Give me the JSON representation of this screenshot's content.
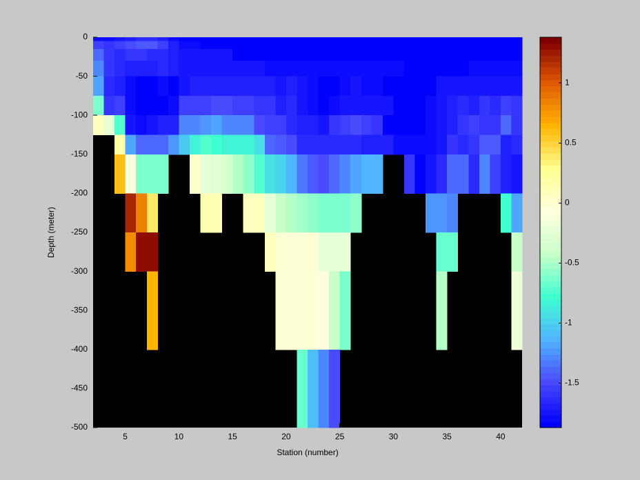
{
  "chart_data": {
    "type": "heatmap",
    "xlabel": "Station (number)",
    "ylabel": "Depth (meter)",
    "x_edges": [
      2,
      3,
      4,
      5,
      6,
      7,
      8,
      9,
      10,
      11,
      12,
      13,
      14,
      15,
      16,
      17,
      18,
      19,
      20,
      21,
      22,
      23,
      24,
      25,
      26,
      27,
      28,
      29,
      30,
      31,
      32,
      33,
      34,
      35,
      36,
      37,
      38,
      39,
      40,
      41,
      42
    ],
    "y_edges": [
      0,
      -5,
      -15,
      -30,
      -50,
      -75,
      -100,
      -125,
      -150,
      -200,
      -250,
      -300,
      -400,
      -500
    ],
    "values": [
      [
        -1.8,
        -1.8,
        -1.75,
        -1.7,
        -1.65,
        -1.65,
        -1.7,
        -1.8,
        -1.85,
        -1.85,
        -1.85,
        -1.85,
        -1.85,
        -1.85,
        -1.85,
        -1.85,
        -1.85,
        -1.85,
        -1.85,
        -1.85,
        -1.85,
        -1.85,
        -1.85,
        -1.85,
        -1.85,
        -1.85,
        -1.85,
        -1.85,
        -1.85,
        -1.85,
        -1.85,
        -1.85,
        -1.85,
        -1.85,
        -1.85,
        -1.85,
        -1.85,
        -1.85,
        -1.85,
        -1.85
      ],
      [
        -1.55,
        -1.6,
        -1.55,
        -1.5,
        -1.45,
        -1.45,
        -1.55,
        -1.7,
        -1.8,
        -1.8,
        -1.85,
        -1.85,
        -1.85,
        -1.85,
        -1.85,
        -1.85,
        -1.85,
        -1.85,
        -1.85,
        -1.85,
        -1.85,
        -1.85,
        -1.85,
        -1.85,
        -1.85,
        -1.85,
        -1.85,
        -1.85,
        -1.85,
        -1.85,
        -1.85,
        -1.85,
        -1.85,
        -1.85,
        -1.85,
        -1.85,
        -1.85,
        -1.85,
        -1.85,
        -1.85
      ],
      [
        -1.4,
        -1.6,
        -1.65,
        -1.6,
        -1.6,
        -1.65,
        -1.65,
        -1.7,
        -1.75,
        -1.75,
        -1.75,
        -1.75,
        -1.75,
        -1.82,
        -1.82,
        -1.82,
        -1.82,
        -1.82,
        -1.82,
        -1.82,
        -1.82,
        -1.85,
        -1.85,
        -1.85,
        -1.85,
        -1.85,
        -1.85,
        -1.85,
        -1.85,
        -1.85,
        -1.85,
        -1.85,
        -1.85,
        -1.85,
        -1.85,
        -1.85,
        -1.85,
        -1.85,
        -1.85,
        -1.85
      ],
      [
        -1.3,
        -1.6,
        -1.65,
        -1.7,
        -1.7,
        -1.7,
        -1.65,
        -1.7,
        -1.75,
        -1.75,
        -1.75,
        -1.75,
        -1.75,
        -1.75,
        -1.75,
        -1.75,
        -1.8,
        -1.8,
        -1.8,
        -1.8,
        -1.8,
        -1.8,
        -1.8,
        -1.8,
        -1.8,
        -1.8,
        -1.8,
        -1.8,
        -1.8,
        -1.85,
        -1.85,
        -1.85,
        -1.85,
        -1.85,
        -1.85,
        -1.8,
        -1.8,
        -1.8,
        -1.8,
        -1.8
      ],
      [
        -1.2,
        -1.65,
        -1.7,
        -1.8,
        -1.85,
        -1.85,
        -1.8,
        -1.85,
        -1.75,
        -1.7,
        -1.7,
        -1.7,
        -1.7,
        -1.7,
        -1.7,
        -1.7,
        -1.7,
        -1.75,
        -1.7,
        -1.75,
        -1.8,
        -1.85,
        -1.85,
        -1.8,
        -1.75,
        -1.8,
        -1.8,
        -1.85,
        -1.85,
        -1.85,
        -1.85,
        -1.85,
        -1.75,
        -1.75,
        -1.75,
        -1.75,
        -1.75,
        -1.75,
        -1.75,
        -1.75
      ],
      [
        -0.65,
        -1.6,
        -1.55,
        -1.8,
        -1.85,
        -1.85,
        -1.85,
        -1.8,
        -1.55,
        -1.55,
        -1.55,
        -1.5,
        -1.5,
        -1.55,
        -1.55,
        -1.6,
        -1.6,
        -1.7,
        -1.65,
        -1.75,
        -1.8,
        -1.85,
        -1.8,
        -1.75,
        -1.75,
        -1.75,
        -1.75,
        -1.75,
        -1.85,
        -1.85,
        -1.85,
        -1.8,
        -1.75,
        -1.7,
        -1.65,
        -1.7,
        -1.6,
        -1.65,
        -1.55,
        -1.6
      ],
      [
        0.1,
        -0.2,
        -0.75,
        -1.75,
        -1.8,
        -1.75,
        -1.7,
        -1.7,
        -1.3,
        -1.3,
        -1.25,
        -1.2,
        -1.3,
        -1.3,
        -1.3,
        -1.5,
        -1.55,
        -1.55,
        -1.65,
        -1.7,
        -1.7,
        -1.75,
        -1.6,
        -1.55,
        -1.5,
        -1.55,
        -1.6,
        -1.85,
        -1.85,
        -1.85,
        -1.85,
        -1.8,
        -1.75,
        -1.7,
        -1.6,
        -1.55,
        -1.6,
        -1.6,
        -1.4,
        -1.6
      ],
      [
        null,
        null,
        0.2,
        -1.2,
        -1.4,
        -1.4,
        -1.4,
        -1.25,
        -1.05,
        -0.85,
        -0.75,
        -0.8,
        -0.85,
        -0.85,
        -0.85,
        -0.95,
        -1.4,
        -1.45,
        -1.5,
        -1.65,
        -1.65,
        -1.65,
        -1.65,
        -1.65,
        -1.65,
        -1.7,
        -1.7,
        -1.7,
        -1.8,
        -1.8,
        -1.8,
        -1.8,
        -1.75,
        -1.6,
        -1.65,
        -1.6,
        -1.45,
        -1.45,
        -1.7,
        -1.65
      ],
      [
        null,
        null,
        0.6,
        -0.1,
        -0.65,
        -0.65,
        -0.65,
        null,
        null,
        0.05,
        -0.2,
        -0.25,
        -0.3,
        -0.45,
        -0.6,
        -0.75,
        -0.95,
        -1.0,
        -1.15,
        -1.35,
        -1.45,
        -1.5,
        -1.4,
        -1.3,
        -1.2,
        -1.15,
        -1.15,
        null,
        null,
        -1.6,
        -1.85,
        -1.75,
        -1.65,
        -1.4,
        -1.4,
        -1.65,
        -1.3,
        -1.55,
        -1.7,
        -1.75
      ],
      [
        null,
        null,
        null,
        1.2,
        0.85,
        0.4,
        null,
        null,
        null,
        null,
        0.15,
        0.15,
        null,
        null,
        0.1,
        0.1,
        -0.2,
        -0.4,
        -0.45,
        -0.5,
        -0.55,
        -0.65,
        -0.65,
        -0.65,
        -0.6,
        null,
        null,
        null,
        null,
        null,
        null,
        -1.25,
        -1.25,
        -1.3,
        null,
        null,
        null,
        null,
        -0.8,
        -1.2
      ],
      [
        null,
        null,
        null,
        0.8,
        1.3,
        1.3,
        null,
        null,
        null,
        null,
        null,
        null,
        null,
        null,
        null,
        null,
        0.1,
        0,
        0,
        0,
        0,
        -0.2,
        -0.2,
        -0.2,
        null,
        null,
        null,
        null,
        null,
        null,
        null,
        null,
        -0.7,
        -0.7,
        null,
        null,
        null,
        null,
        null,
        -0.4
      ],
      [
        null,
        null,
        null,
        null,
        null,
        0.65,
        null,
        null,
        null,
        null,
        null,
        null,
        null,
        null,
        null,
        null,
        null,
        0,
        0,
        0,
        0,
        -0.05,
        -0.4,
        -0.65,
        null,
        null,
        null,
        null,
        null,
        null,
        null,
        null,
        -0.45,
        null,
        null,
        null,
        null,
        null,
        null,
        -0.15
      ],
      [
        null,
        null,
        null,
        null,
        null,
        null,
        null,
        null,
        null,
        null,
        null,
        null,
        null,
        null,
        null,
        null,
        null,
        null,
        null,
        -0.7,
        -1.1,
        -1.3,
        -1.5,
        null,
        null,
        null,
        null,
        null,
        null,
        null,
        null,
        null,
        null,
        null,
        null,
        null,
        null,
        null,
        null,
        null
      ]
    ],
    "xlim": [
      2,
      42
    ],
    "ylim": [
      -500,
      0
    ],
    "xticks": [
      5,
      10,
      15,
      20,
      25,
      30,
      35,
      40
    ],
    "yticks": [
      0,
      -50,
      -100,
      -150,
      -200,
      -250,
      -300,
      -350,
      -400,
      -450,
      -500
    ],
    "clim": [
      -1.87,
      1.38
    ],
    "cticks": [
      -1.5,
      -1,
      -0.5,
      0,
      0.5,
      1
    ],
    "colormap": [
      "#0000ff",
      "#4a4aff",
      "#50b4ff",
      "#40ffd0",
      "#c8ffc8",
      "#ffffe0",
      "#ffff90",
      "#ffb400",
      "#e05a00",
      "#800000"
    ],
    "colormap_levels": 64,
    "nan_color": "#000000"
  }
}
